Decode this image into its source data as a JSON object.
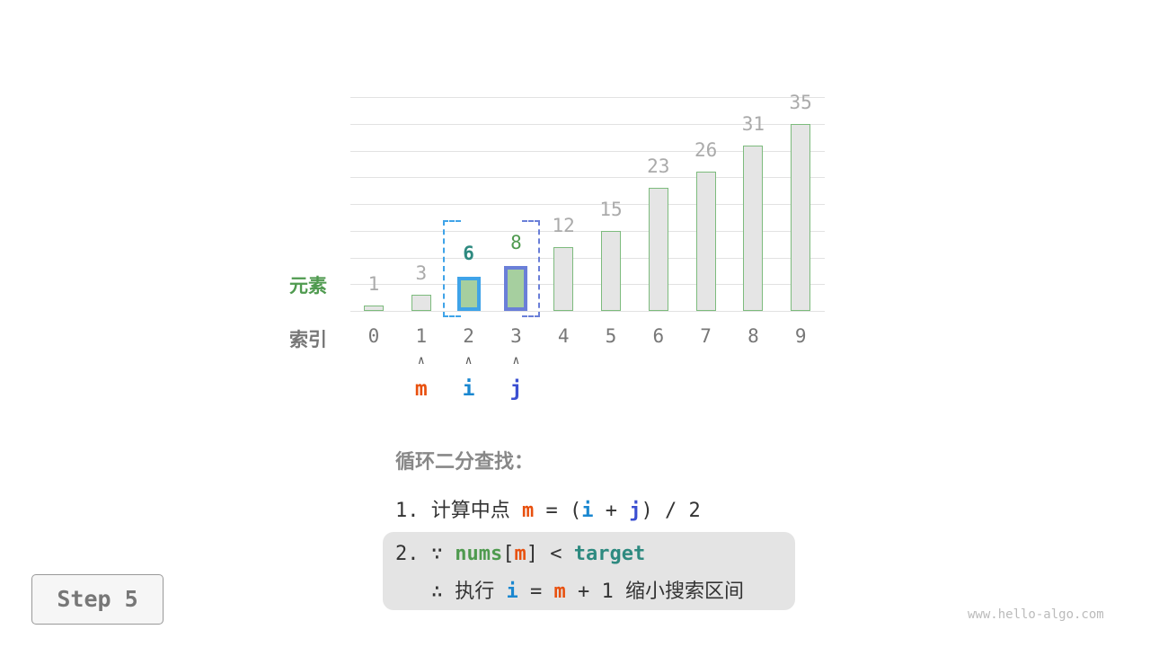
{
  "chart_data": {
    "type": "bar",
    "categories": [
      "0",
      "1",
      "2",
      "3",
      "4",
      "5",
      "6",
      "7",
      "8",
      "9"
    ],
    "values": [
      1,
      3,
      6,
      8,
      12,
      15,
      23,
      26,
      31,
      35
    ],
    "ylim": [
      0,
      40
    ],
    "grid": true,
    "highlighted_indices": [
      2,
      3
    ]
  },
  "labels": {
    "elements": "元素",
    "index": "索引"
  },
  "pointers": [
    {
      "name": "m",
      "index": 1,
      "color": "#e8500e"
    },
    {
      "name": "i",
      "index": 2,
      "color": "#1a87d0"
    },
    {
      "name": "j",
      "index": 3,
      "color": "#3b4fd1"
    }
  ],
  "pointer_arrow": "∧",
  "colors": {
    "green": "#4f9a4f",
    "teal": "#2e8a80",
    "i_box": "#3fa3e8",
    "j_box": "#6a7fd8",
    "highlight_fill": "#a6cf9f"
  },
  "text": {
    "title": "循环二分查找：",
    "step1_num": "1.",
    "step1_text": "计算中点",
    "m": "m",
    "eq": "=",
    "lp": "(",
    "i": "i",
    "plus": "+",
    "j": "j",
    "rp": ")",
    "div": "/ 2",
    "step2_num": "2.",
    "because": "∵",
    "nums": "nums",
    "lb": "[",
    "rb": "]",
    "lt": "<",
    "target": "target",
    "therefore": "∴",
    "exec": "执行",
    "one": "+ 1",
    "shrink": "缩小搜索区间"
  },
  "step_label": "Step 5",
  "watermark": "www.hello-algo.com"
}
